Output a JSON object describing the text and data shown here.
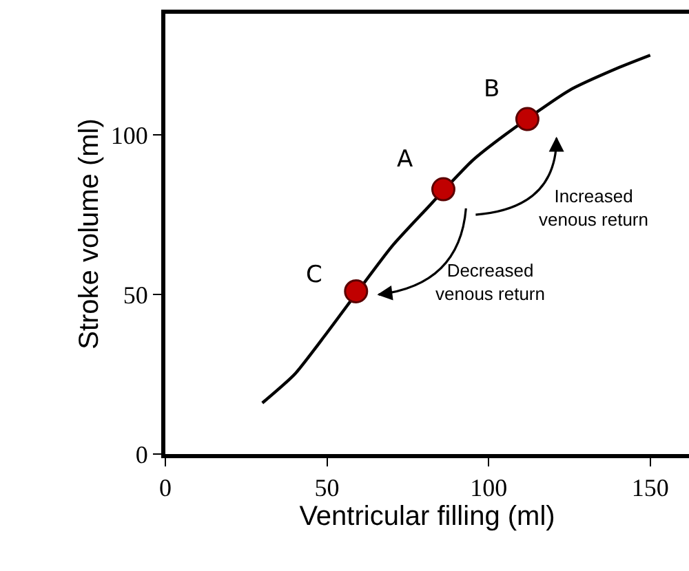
{
  "chart_data": {
    "type": "line",
    "xlabel": "Ventricular filling (ml)",
    "ylabel": "Stroke volume (ml)",
    "xlim": [
      0,
      162
    ],
    "ylim": [
      0,
      138
    ],
    "xticks": [
      0,
      50,
      100,
      150
    ],
    "yticks": [
      0,
      50,
      100
    ],
    "series": [
      {
        "color": "#000000",
        "marker": "none",
        "x": [
          30,
          40,
          50,
          70,
          80,
          95,
          105,
          125,
          140,
          150
        ],
        "values": [
          16,
          25,
          38,
          65,
          76,
          92,
          100,
          114,
          121,
          125
        ]
      },
      {
        "type": "scatter",
        "color": "#c00000",
        "marker": "circle",
        "x": [
          59,
          86,
          112
        ],
        "values": [
          51,
          83,
          105
        ]
      }
    ],
    "annotations": [
      {
        "text": "C",
        "x": 59,
        "y": 51
      },
      {
        "text": "A",
        "x": 86,
        "y": 83
      },
      {
        "text": "B",
        "x": 112,
        "y": 105
      },
      "Decreased\nvenous return",
      "Increased\nvenous return"
    ]
  }
}
